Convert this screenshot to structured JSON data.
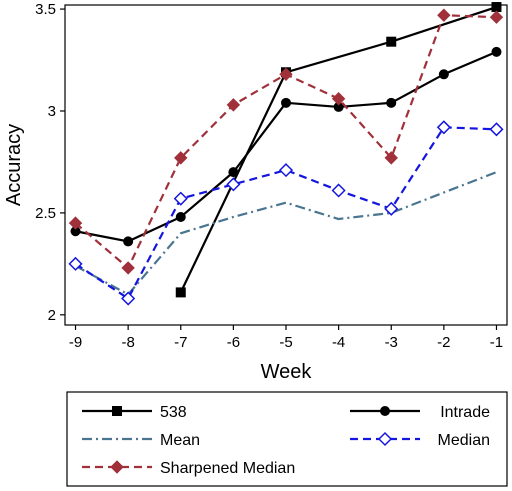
{
  "chart_data": {
    "type": "line",
    "title": "",
    "xlabel": "Week",
    "ylabel": "Accuracy",
    "x": [
      -9,
      -8,
      -7,
      -6,
      -5,
      -4,
      -3,
      -2,
      -1
    ],
    "x_ticks": [
      "-9",
      "-8",
      "-7",
      "-6",
      "-5",
      "-4",
      "-3",
      "-2",
      "-1"
    ],
    "xlim": [
      -9.2,
      -0.8
    ],
    "ylim": [
      1.95,
      3.52
    ],
    "y_ticks": [
      2,
      2.5,
      3,
      3.5
    ],
    "y_tick_labels": [
      "2",
      "2.5",
      "3",
      "3.5"
    ],
    "grid": false,
    "legend_position": "bottom",
    "series": [
      {
        "name": "538",
        "color": "#000000",
        "dash": "solid",
        "marker": "square",
        "values": [
          null,
          null,
          2.11,
          null,
          3.19,
          null,
          3.34,
          null,
          3.51
        ]
      },
      {
        "name": "Intrade",
        "color": "#000000",
        "dash": "solid",
        "marker": "circle",
        "values": [
          2.41,
          2.36,
          2.48,
          2.7,
          3.04,
          3.02,
          3.04,
          3.18,
          3.29
        ]
      },
      {
        "name": "Mean",
        "color": "#4a7590",
        "dash": "dashdot",
        "marker": "none",
        "values": [
          2.24,
          2.1,
          2.4,
          2.48,
          2.55,
          2.47,
          2.5,
          2.6,
          2.7
        ]
      },
      {
        "name": "Median",
        "color": "#1515e0",
        "dash": "dash",
        "marker": "diamond-open",
        "values": [
          2.25,
          2.08,
          2.57,
          2.64,
          2.71,
          2.61,
          2.52,
          2.92,
          2.91
        ]
      },
      {
        "name": "Sharpened Median",
        "color": "#a0303a",
        "dash": "dash",
        "marker": "diamond",
        "values": [
          2.45,
          2.23,
          2.77,
          3.03,
          3.18,
          3.06,
          2.77,
          3.47,
          3.46
        ]
      }
    ]
  }
}
